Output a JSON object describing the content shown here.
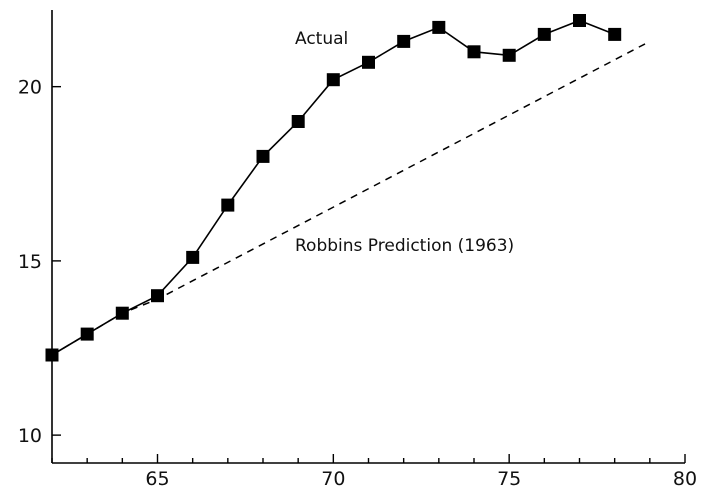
{
  "chart_data": {
    "type": "line",
    "title": "",
    "xlabel": "",
    "ylabel": "",
    "xlim": [
      62,
      80
    ],
    "ylim": [
      9.2,
      22.2
    ],
    "x_ticks": [
      65,
      70,
      75,
      80
    ],
    "y_ticks": [
      10,
      15,
      20
    ],
    "grid": false,
    "series": [
      {
        "name": "Actual",
        "style": "solid-square-markers",
        "x": [
          62,
          63,
          64,
          65,
          66,
          67,
          68,
          69,
          70,
          71,
          72,
          73,
          74,
          75,
          76,
          77,
          78
        ],
        "y": [
          12.3,
          12.9,
          13.5,
          14.0,
          15.1,
          16.6,
          18.0,
          19.0,
          20.2,
          20.7,
          21.3,
          21.7,
          21.0,
          20.9,
          21.5,
          21.9,
          21.5
        ]
      },
      {
        "name": "Robbins Prediction (1963)",
        "style": "dashed",
        "x": [
          62,
          63,
          64,
          65,
          79
        ],
        "y": [
          12.3,
          12.9,
          13.5,
          13.9,
          21.3
        ]
      }
    ],
    "annotations": [
      {
        "text": "Actual",
        "series": 0
      },
      {
        "text": "Robbins Prediction (1963)",
        "series": 1
      }
    ]
  }
}
